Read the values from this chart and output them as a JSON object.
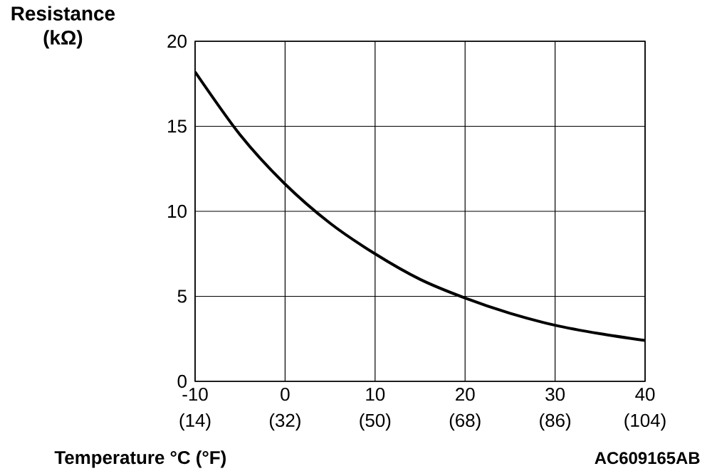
{
  "chart_data": {
    "type": "line",
    "ylabel": "Resistance (kΩ)",
    "xlabel": "Temperature °C (°F)",
    "x": [
      -10,
      -5,
      0,
      5,
      10,
      15,
      20,
      25,
      30,
      35,
      40
    ],
    "series": [
      {
        "color": "#000000",
        "values": [
          18.2,
          14.5,
          11.6,
          9.3,
          7.5,
          6.0,
          4.9,
          4.0,
          3.3,
          2.8,
          2.4
        ]
      }
    ],
    "xlim": [
      -10,
      40
    ],
    "xticks": [
      -10,
      0,
      10,
      20,
      30,
      40
    ],
    "x2lim": [
      14,
      104
    ],
    "x2ticks": [
      {
        "value": 14,
        "label": "(14)"
      },
      {
        "value": 32,
        "label": "(32)"
      },
      {
        "value": 50,
        "label": "(50)"
      },
      {
        "value": 68,
        "label": "(68)"
      },
      {
        "value": 86,
        "label": "(86)"
      },
      {
        "value": 104,
        "label": "(104)"
      }
    ],
    "ylim": [
      0,
      20
    ],
    "yticks": [
      0,
      5,
      10,
      15,
      20
    ],
    "grid": true,
    "annotations": [
      "AC609165AB"
    ]
  }
}
